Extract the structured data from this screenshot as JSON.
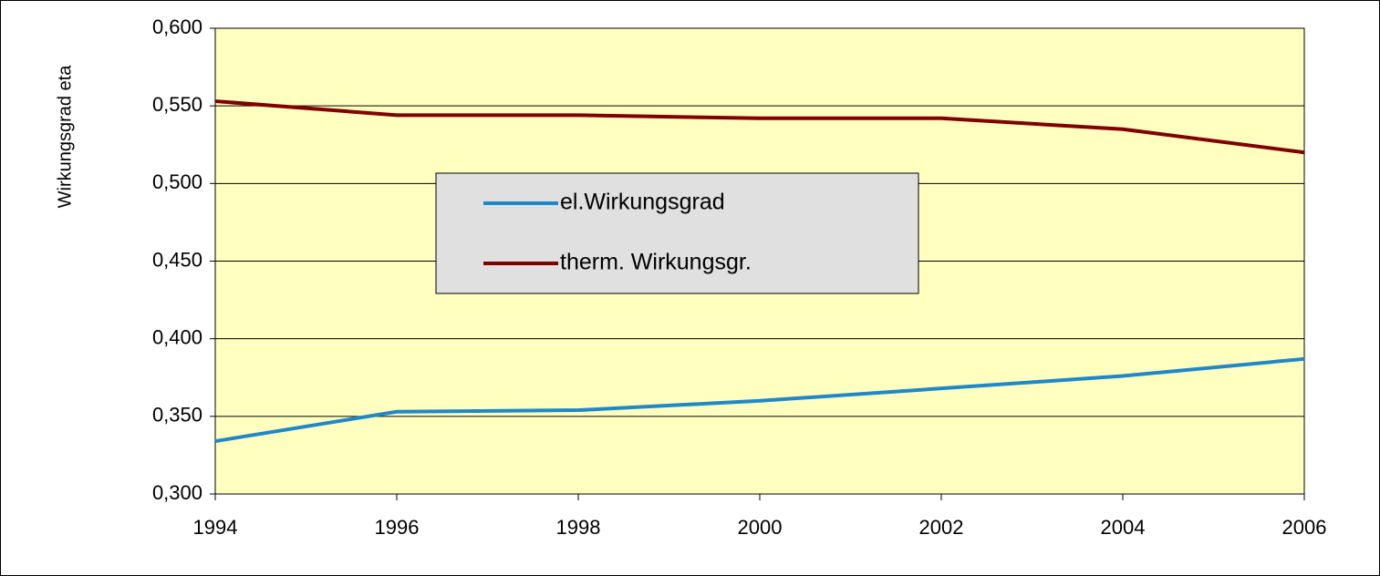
{
  "chart_data": {
    "type": "line",
    "y_label": "Wirkungsgrad eta",
    "x": [
      1994,
      1996,
      1998,
      2000,
      2002,
      2004,
      2006
    ],
    "series": [
      {
        "name": "el.Wirkungsgrad",
        "color": "#1f88c8",
        "values": [
          0.334,
          0.353,
          0.354,
          0.36,
          0.368,
          0.376,
          0.387
        ]
      },
      {
        "name": "therm. Wirkungsgr.",
        "color": "#800000",
        "values": [
          0.553,
          0.544,
          0.544,
          0.542,
          0.542,
          0.535,
          0.52
        ]
      }
    ],
    "xlim": [
      1994,
      2006
    ],
    "xticks": [
      1994,
      1996,
      1998,
      2000,
      2002,
      2004,
      2006
    ],
    "ylim": [
      0.3,
      0.6
    ],
    "yticks": [
      {
        "value": 0.3,
        "label": "0,300"
      },
      {
        "value": 0.35,
        "label": "0,350"
      },
      {
        "value": 0.4,
        "label": "0,400"
      },
      {
        "value": 0.45,
        "label": "0,450"
      },
      {
        "value": 0.5,
        "label": "0,500"
      },
      {
        "value": 0.55,
        "label": "0,550"
      },
      {
        "value": 0.6,
        "label": "0,600"
      }
    ],
    "grid": true,
    "plot_background": "#ffffc0",
    "legend_background": "#e0e0e0"
  }
}
